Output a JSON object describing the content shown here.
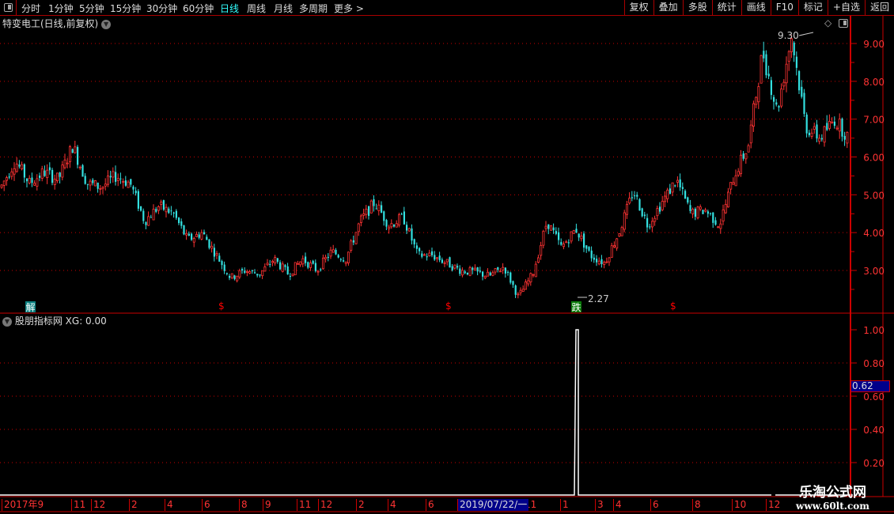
{
  "toolbar": {
    "periods": [
      "分时",
      "1分钟",
      "5分钟",
      "15分钟",
      "30分钟",
      "60分钟",
      "日线",
      "周线",
      "月线",
      "多周期",
      "更多 >"
    ],
    "active_period": "日线",
    "buttons": [
      "复权",
      "叠加",
      "多股",
      "统计",
      "画线",
      "F10",
      "标记",
      "+自选",
      "返回"
    ]
  },
  "main_chart": {
    "title": "特变电工(日线,前复权)",
    "high_label": "9.30",
    "low_label": "2.27",
    "y_ticks": [
      "9.00",
      "8.00",
      "7.00",
      "6.00",
      "5.00",
      "4.00",
      "3.00"
    ],
    "markers": [
      {
        "text": "解",
        "color": "#0a8080"
      },
      {
        "text": "$",
        "color": "#f00"
      },
      {
        "text": "$",
        "color": "#f00"
      },
      {
        "text": "跌",
        "color": "#0a7a0a"
      },
      {
        "text": "$",
        "color": "#f00"
      }
    ],
    "up_color": "#ff3333",
    "down_color": "#33e0e0",
    "approx_close_path": [
      5.2,
      5.9,
      5.3,
      5.6,
      5.4,
      6.3,
      5.3,
      5.2,
      5.5,
      5.3,
      4.3,
      4.7,
      4.5,
      3.8,
      4.0,
      3.4,
      2.8,
      3.0,
      2.9,
      3.3,
      2.9,
      3.3,
      3.0,
      3.5,
      3.3,
      4.3,
      4.8,
      4.2,
      4.4,
      3.4,
      3.4,
      3.2,
      3.0,
      2.95,
      2.85,
      3.1,
      2.3,
      2.9,
      4.3,
      3.6,
      4.1,
      3.4,
      3.2,
      4.0,
      5.1,
      4.2,
      4.8,
      5.4,
      4.5,
      4.6,
      4.2,
      5.5,
      6.3,
      8.8,
      7.2,
      9.2,
      6.8,
      6.5,
      7.0,
      6.5
    ]
  },
  "indicator": {
    "title": "股朋指标网",
    "value_label": "XG: 0.00",
    "y_ticks": [
      "1.00",
      "0.80",
      "0.60",
      "0.40",
      "0.20"
    ],
    "cursor_value": "0.62",
    "signal_value": 1.0
  },
  "date_axis": {
    "labels": [
      "2017年9",
      "11",
      "12",
      "2",
      "4",
      "6",
      "8",
      "9",
      "11",
      "12",
      "2",
      "4",
      "6",
      "11",
      "1",
      "3",
      "4",
      "6",
      "8",
      "10",
      "12"
    ],
    "selected_date": "2019/07/22/一"
  },
  "watermark": {
    "name": "乐淘公式网",
    "url": "www.60lt.com"
  }
}
